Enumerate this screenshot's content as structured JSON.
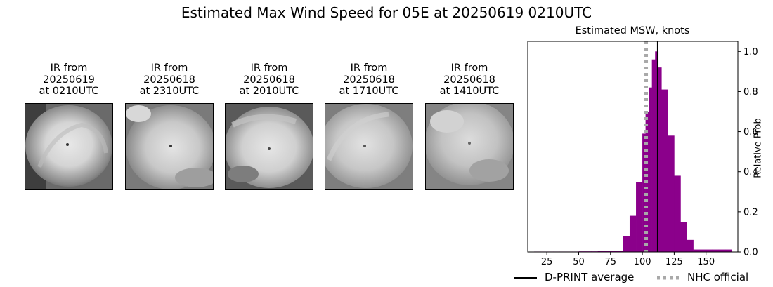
{
  "title": "Estimated Max Wind Speed for 05E at 20250619 0210UTC",
  "ir_panels": [
    {
      "line1": "IR from",
      "line2": "20250619",
      "line3": "at 0210UTC"
    },
    {
      "line1": "IR from",
      "line2": "20250618",
      "line3": "at 2310UTC"
    },
    {
      "line1": "IR from",
      "line2": "20250618",
      "line3": "at 2010UTC"
    },
    {
      "line1": "IR from",
      "line2": "20250618",
      "line3": "at 1710UTC"
    },
    {
      "line1": "IR from",
      "line2": "20250618",
      "line3": "at 1410UTC"
    }
  ],
  "chart_data": {
    "type": "bar",
    "title": "Estimated MSW, knots",
    "xlabel": "",
    "ylabel": "Relative Prob",
    "x_ticks": [
      25,
      50,
      75,
      100,
      125,
      150
    ],
    "y_ticks": [
      0.0,
      0.2,
      0.4,
      0.6,
      0.8,
      1.0
    ],
    "y_tick_labels": [
      "0.0",
      "0.2",
      "0.4",
      "0.6",
      "0.8",
      "1.0"
    ],
    "xlim": [
      10,
      175
    ],
    "ylim": [
      0,
      1.05
    ],
    "bin_width": 5,
    "bins": [
      {
        "x": 15,
        "value": 0.002
      },
      {
        "x": 20,
        "value": 0.002
      },
      {
        "x": 25,
        "value": 0.002
      },
      {
        "x": 30,
        "value": 0.002
      },
      {
        "x": 35,
        "value": 0.002
      },
      {
        "x": 40,
        "value": 0.002
      },
      {
        "x": 45,
        "value": 0.002
      },
      {
        "x": 50,
        "value": 0.003
      },
      {
        "x": 55,
        "value": 0.003
      },
      {
        "x": 60,
        "value": 0.003
      },
      {
        "x": 65,
        "value": 0.004
      },
      {
        "x": 70,
        "value": 0.004
      },
      {
        "x": 75,
        "value": 0.005
      },
      {
        "x": 80,
        "value": 0.007
      },
      {
        "x": 85,
        "value": 0.08
      },
      {
        "x": 90,
        "value": 0.18
      },
      {
        "x": 95,
        "value": 0.35
      },
      {
        "x": 100,
        "value": 0.59
      },
      {
        "x": 102.5,
        "value": 0.7
      },
      {
        "x": 105,
        "value": 0.82
      },
      {
        "x": 107.5,
        "value": 0.96
      },
      {
        "x": 110,
        "value": 1.0
      },
      {
        "x": 112.5,
        "value": 0.92
      },
      {
        "x": 115,
        "value": 0.81
      },
      {
        "x": 120,
        "value": 0.58
      },
      {
        "x": 125,
        "value": 0.38
      },
      {
        "x": 130,
        "value": 0.15
      },
      {
        "x": 135,
        "value": 0.06
      },
      {
        "x": 140,
        "value": 0.012
      },
      {
        "x": 145,
        "value": 0.012
      },
      {
        "x": 150,
        "value": 0.012
      },
      {
        "x": 155,
        "value": 0.012
      },
      {
        "x": 160,
        "value": 0.012
      },
      {
        "x": 165,
        "value": 0.012
      }
    ],
    "dprint_average": 112,
    "nhc_official": 103,
    "bar_color": "#8b008b",
    "nhc_color": "#a9a9a9",
    "legend": [
      {
        "label": "D-PRINT average",
        "style": "solid",
        "color": "#000000"
      },
      {
        "label": "NHC official",
        "style": "dotted",
        "color": "#a9a9a9"
      }
    ],
    "legend_position": "bottom"
  }
}
